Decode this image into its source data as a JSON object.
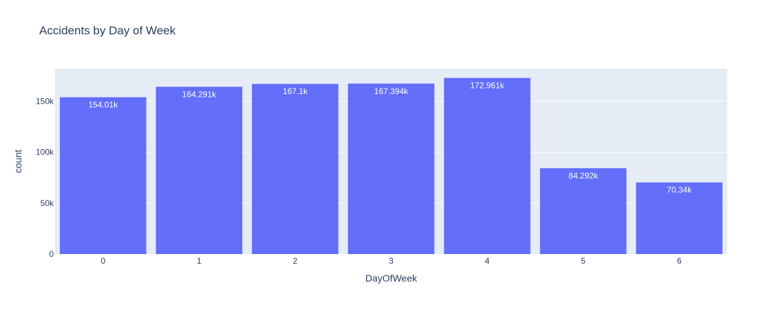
{
  "chart_data": {
    "type": "bar",
    "title": "Accidents by Day of Week",
    "xlabel": "DayOfWeek",
    "ylabel": "count",
    "categories": [
      "0",
      "1",
      "2",
      "3",
      "4",
      "5",
      "6"
    ],
    "values": [
      154010,
      164291,
      167100,
      167394,
      172961,
      84292,
      70340
    ],
    "data_labels": [
      "154.01k",
      "164.291k",
      "167.1k",
      "167.394k",
      "172.961k",
      "84.292k",
      "70.34k"
    ],
    "ylim": [
      0,
      182064
    ],
    "yticks": [
      0,
      50000,
      100000,
      150000
    ],
    "ytick_labels": [
      "0",
      "50k",
      "100k",
      "150k"
    ],
    "grid": true,
    "bar_color": "#636efa",
    "plot_bg_color": "#e5ecf6",
    "grid_color": "#ffffff",
    "text_color": "#2a3f5f"
  }
}
